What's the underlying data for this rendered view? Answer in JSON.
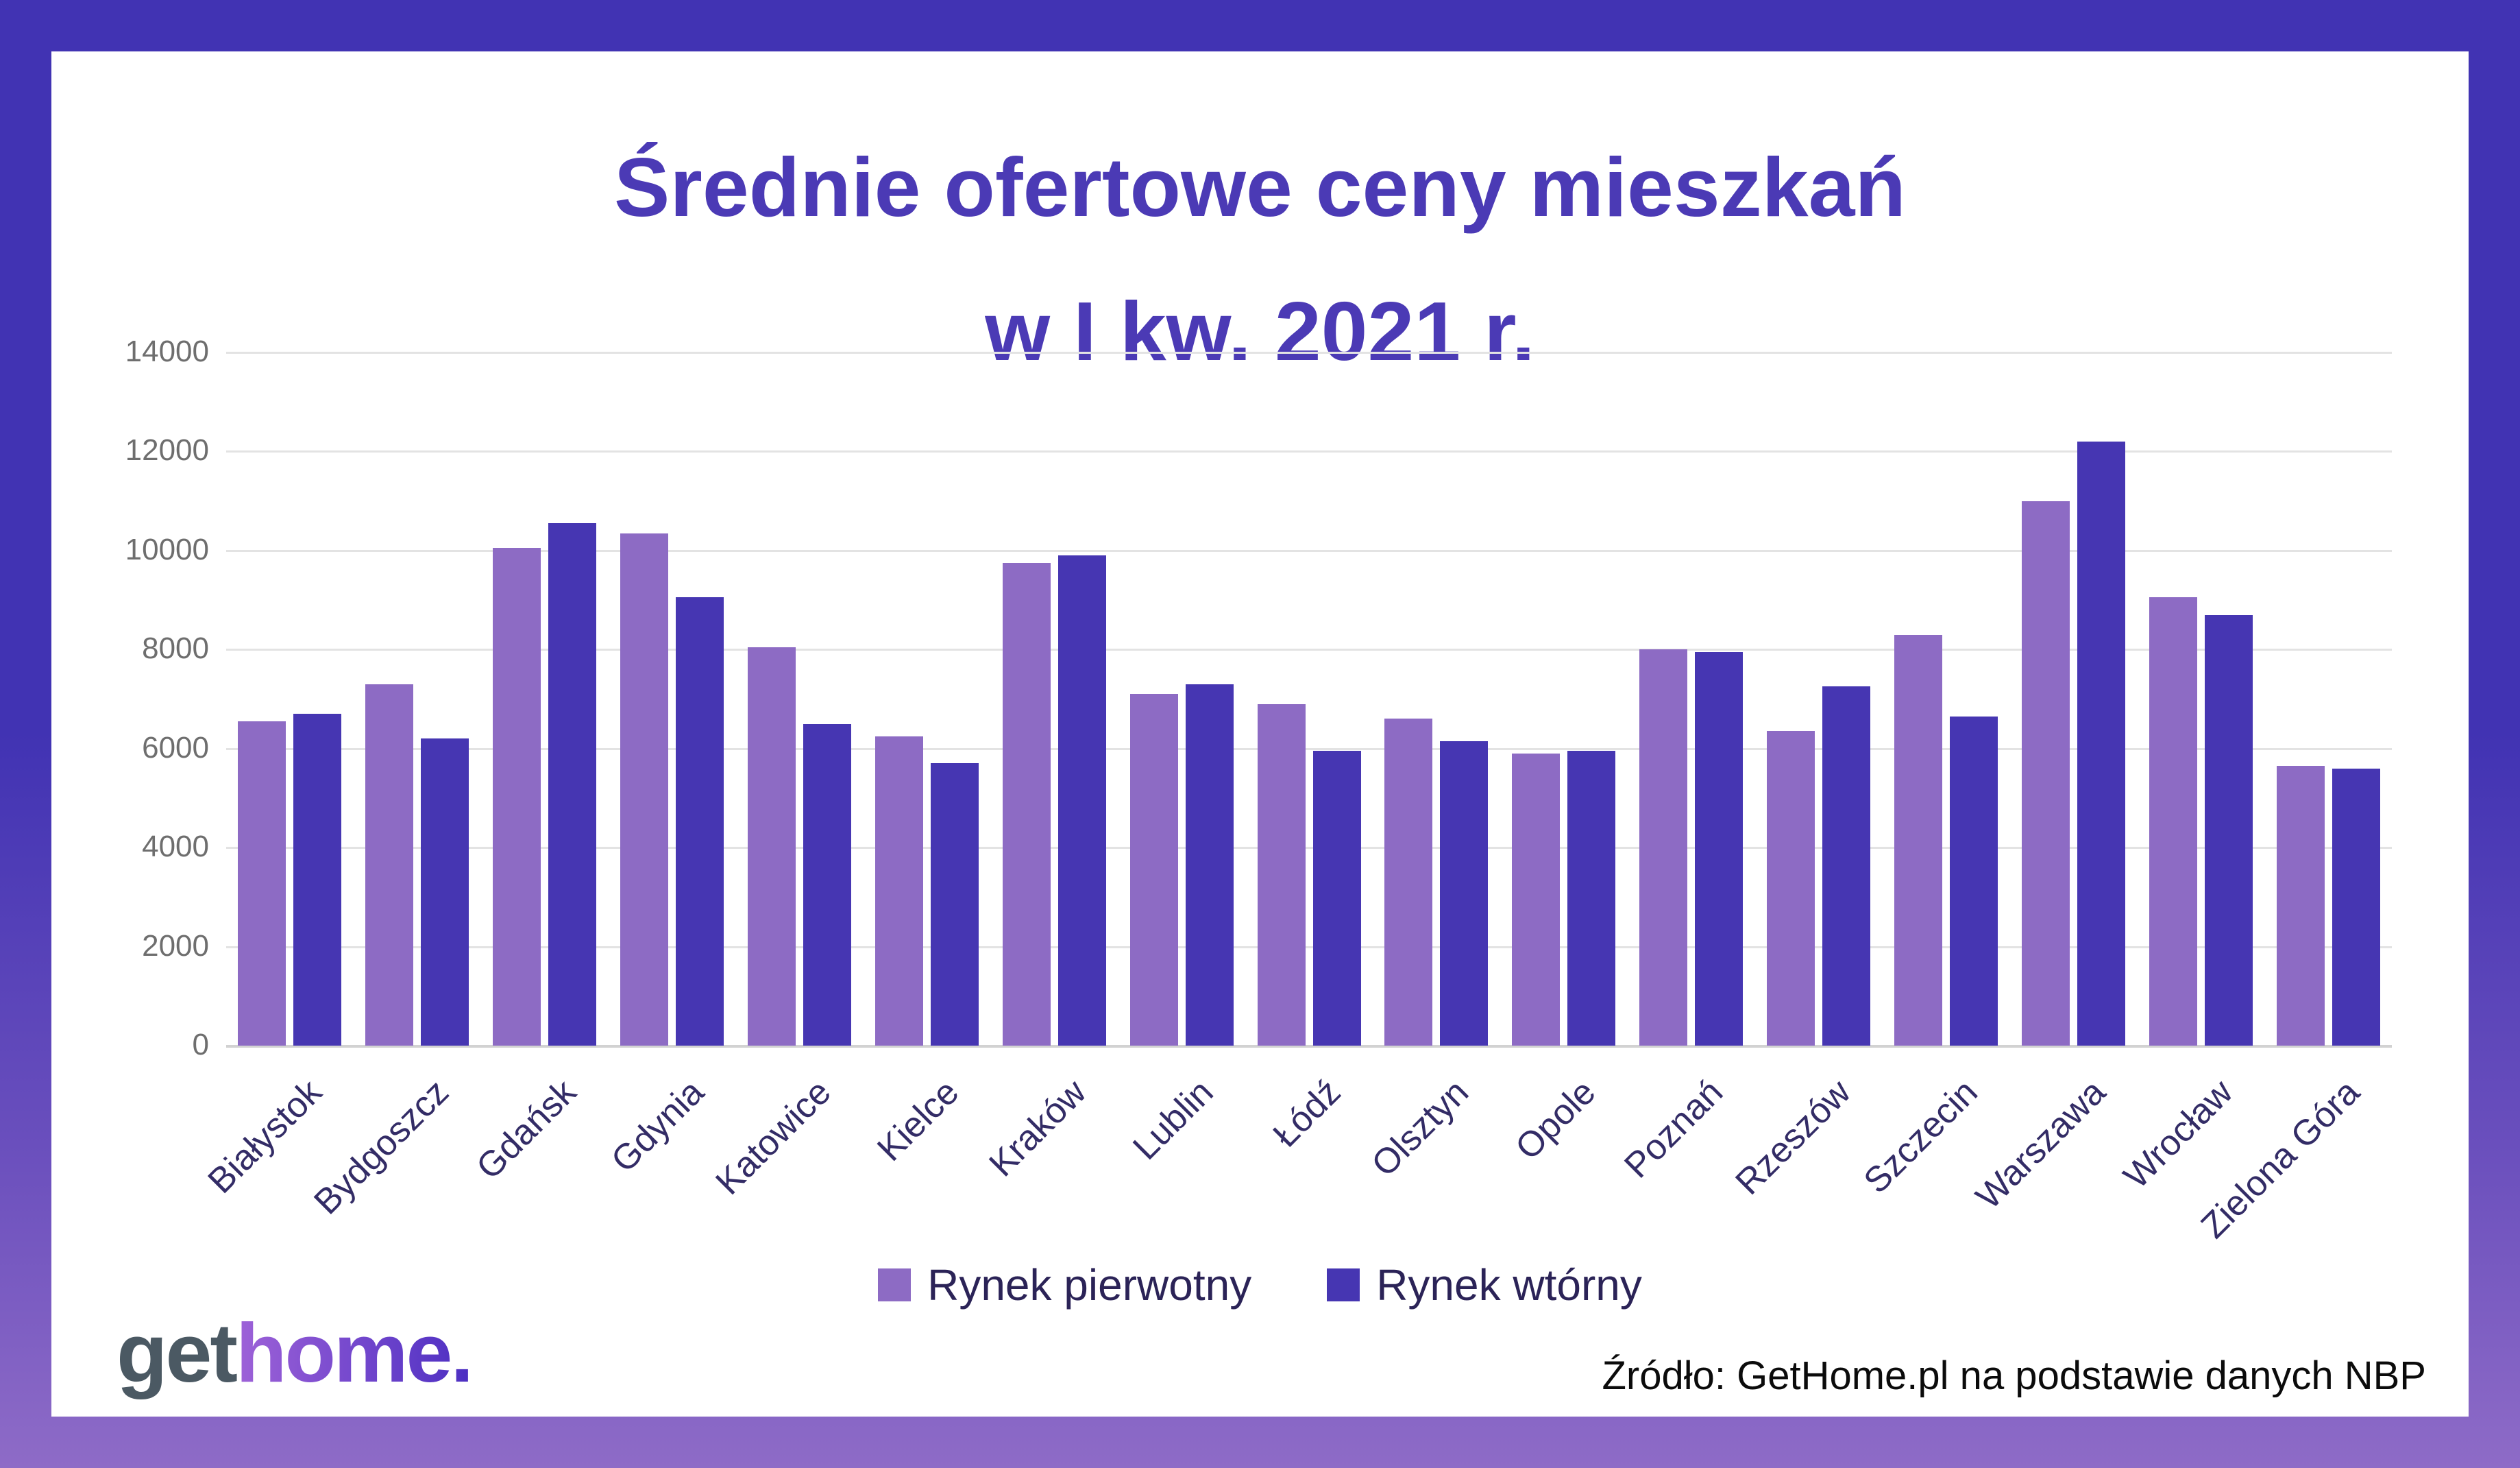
{
  "title": {
    "line1": "Średnie ofertowe ceny mieszkań",
    "line2": "w I kw. 2021 r."
  },
  "chart_data": {
    "type": "bar",
    "title": "Średnie ofertowe ceny mieszkań w I kw. 2021 r.",
    "categories": [
      "Białystok",
      "Bydgoszcz",
      "Gdańsk",
      "Gdynia",
      "Katowice",
      "Kielce",
      "Kraków",
      "Lublin",
      "Łódź",
      "Olsztyn",
      "Opole",
      "Poznań",
      "Rzeszów",
      "Szczecin",
      "Warszawa",
      "Wrocław",
      "Zielona Góra"
    ],
    "series": [
      {
        "name": "Rynek pierwotny",
        "color": "#8d6bc4",
        "values": [
          6550,
          7300,
          10050,
          10350,
          8050,
          6250,
          9750,
          7100,
          6900,
          6600,
          5900,
          8000,
          6350,
          8300,
          11000,
          9050,
          5650
        ]
      },
      {
        "name": "Rynek wtórny",
        "color": "#4636b2",
        "values": [
          6700,
          6200,
          10550,
          9050,
          6500,
          5700,
          9900,
          7300,
          5950,
          6150,
          5950,
          7950,
          7250,
          6650,
          12200,
          8700,
          5600
        ]
      }
    ],
    "xlabel": "",
    "ylabel": "",
    "ylim": [
      0,
      14000
    ],
    "ytick_step": 2000,
    "yticks": [
      "0",
      "2000",
      "4000",
      "6000",
      "8000",
      "10000",
      "12000",
      "14000"
    ],
    "grid": "horizontal",
    "legend_position": "bottom"
  },
  "legend": {
    "items": [
      {
        "label": "Rynek pierwotny",
        "color": "#8d6bc4"
      },
      {
        "label": "Rynek wtórny",
        "color": "#4636b2"
      }
    ]
  },
  "footer": {
    "logo_get": "get",
    "logo_home": "home.",
    "source": "Źródło: GetHome.pl na podstawie danych NBP"
  },
  "colors": {
    "accent_title": "#4b3ab5",
    "bar_primary": "#8d6bc4",
    "bar_secondary": "#4636b2",
    "frame_top": "#4133b3",
    "frame_bottom": "#8e6bc7",
    "ytick_text": "#6e6e6e",
    "xtick_text": "#332c66",
    "gridline": "#e3e3e3"
  }
}
